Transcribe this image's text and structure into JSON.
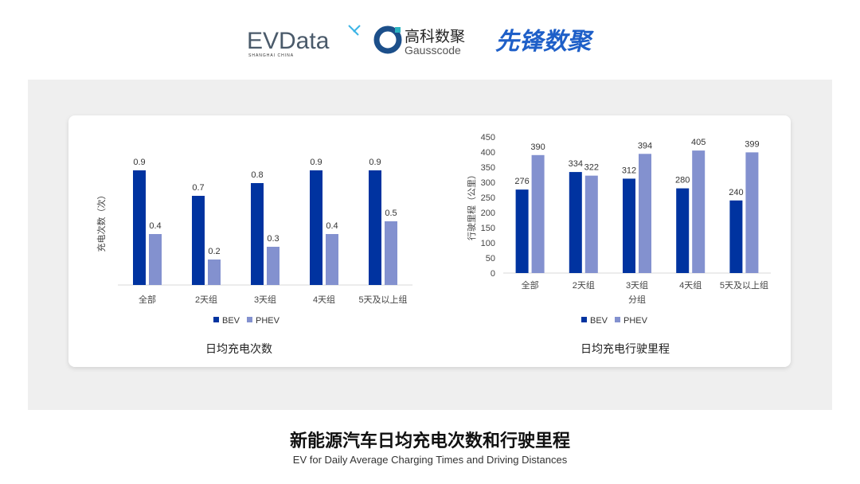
{
  "logos": {
    "evdata": "EVData",
    "evdata_sub": "SHANGHAI CHINA",
    "gauss_cn": "高科数聚",
    "gauss_en": "Gausscode",
    "xianfeng": "先锋数聚"
  },
  "colors": {
    "bev": "#0033a0",
    "phev": "#8391cf",
    "panel": "#efefef"
  },
  "chart_data": [
    {
      "type": "bar",
      "title": "日均充电次数",
      "ylabel": "充电次数（次）",
      "xlabel": "",
      "categories": [
        "全部",
        "2天组",
        "3天组",
        "4天组",
        "5天及以上组"
      ],
      "series": [
        {
          "name": "BEV",
          "values": [
            0.9,
            0.7,
            0.8,
            0.9,
            0.9
          ]
        },
        {
          "name": "PHEV",
          "values": [
            0.4,
            0.2,
            0.3,
            0.4,
            0.5
          ]
        }
      ],
      "ylim": [
        0,
        1
      ],
      "y_ticks_shown": false,
      "grid": false,
      "legend": "bottom"
    },
    {
      "type": "bar",
      "title": "日均充电行驶里程",
      "ylabel": "行驶里程（公里）",
      "xlabel": "分组",
      "categories": [
        "全部",
        "2天组",
        "3天组",
        "4天组",
        "5天及以上组"
      ],
      "series": [
        {
          "name": "BEV",
          "values": [
            276,
            334,
            312,
            280,
            240
          ]
        },
        {
          "name": "PHEV",
          "values": [
            390,
            322,
            394,
            405,
            399
          ]
        }
      ],
      "ylim": [
        0,
        450
      ],
      "yticks": [
        0,
        50,
        100,
        150,
        200,
        250,
        300,
        350,
        400,
        450
      ],
      "grid": false,
      "legend": "bottom"
    }
  ],
  "footer": {
    "title": "新能源汽车日均充电次数和行驶里程",
    "subtitle": "EV for Daily Average Charging Times and Driving Distances"
  }
}
